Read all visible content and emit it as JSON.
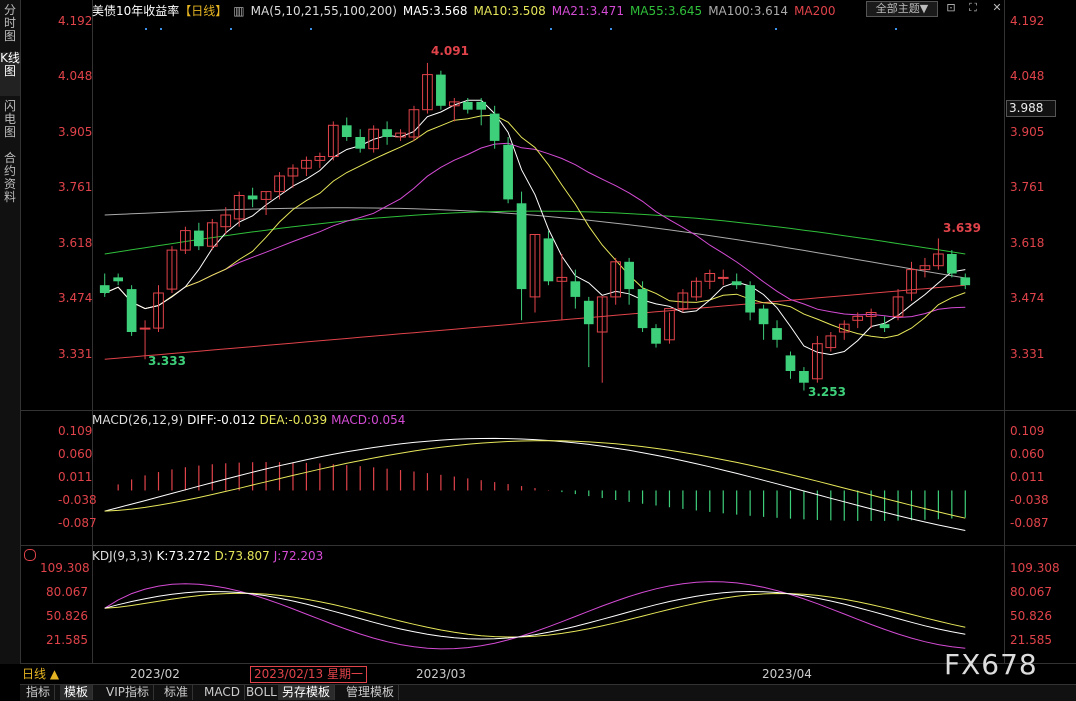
{
  "sidebar": [
    "分时图",
    "K线图",
    "闪电图",
    "合约资料"
  ],
  "header": {
    "title": "美债10年收益率",
    "period_tag": "【日线】",
    "ma_label": "MA(5,10,21,55,100,200)",
    "ma5": "MA5:3.568",
    "ma10": "MA10:3.508",
    "ma21": "MA21:3.471",
    "ma55": "MA55:3.645",
    "ma100": "MA100:3.614",
    "ma200": "MA200",
    "theme_button": "全部主题▼"
  },
  "colors": {
    "up": "#e0434a",
    "down": "#3ecf7a",
    "ma5": "#ffffff",
    "ma10": "#e6e65a",
    "ma21": "#d44bd4",
    "ma55": "#2fbf3a",
    "ma100": "#aaaaaa",
    "ma200": "#e0434a"
  },
  "price_axis": [
    "4.192",
    "4.048",
    "3.905",
    "3.761",
    "3.618",
    "3.474",
    "3.331"
  ],
  "current_price": "3.988",
  "annotations": {
    "high": "4.091",
    "low_left": "3.333",
    "low_right": "3.253",
    "recent_high": "3.639"
  },
  "macd": {
    "label": "MACD(26,12,9)",
    "diff": "DIFF:-0.012",
    "dea": "DEA:-0.039",
    "macd": "MACD:0.054",
    "axis": [
      "0.109",
      "0.060",
      "0.011",
      "-0.038",
      "-0.087"
    ]
  },
  "kdj": {
    "label": "KDJ(9,3,3)",
    "k": "K:73.272",
    "d": "D:73.807",
    "j": "J:72.203",
    "axis": [
      "109.308",
      "80.067",
      "50.826",
      "21.585"
    ]
  },
  "date_axis": [
    "2023/02",
    "2023/03",
    "2023/04"
  ],
  "period_button": "日线 ▲",
  "selected_date": "2023/02/13 星期一",
  "bottom_tabs": [
    "指标",
    "模板",
    "VIP指标",
    "标准",
    "MACD",
    "BOLL",
    "另存模板",
    "管理模板"
  ],
  "watermark": "FX678",
  "chart_data": [
    {
      "type": "candlestick",
      "title": "美债10年收益率【日线】",
      "ylim": [
        3.2,
        4.2
      ],
      "candles": [
        [
          3.52,
          3.55,
          3.49,
          3.5
        ],
        [
          3.54,
          3.55,
          3.52,
          3.53
        ],
        [
          3.51,
          3.52,
          3.39,
          3.4
        ],
        [
          3.41,
          3.43,
          3.33,
          3.41
        ],
        [
          3.41,
          3.52,
          3.4,
          3.5
        ],
        [
          3.51,
          3.62,
          3.5,
          3.61
        ],
        [
          3.61,
          3.67,
          3.6,
          3.66
        ],
        [
          3.66,
          3.68,
          3.61,
          3.62
        ],
        [
          3.62,
          3.69,
          3.61,
          3.68
        ],
        [
          3.67,
          3.72,
          3.65,
          3.7
        ],
        [
          3.69,
          3.76,
          3.67,
          3.75
        ],
        [
          3.75,
          3.77,
          3.72,
          3.74
        ],
        [
          3.74,
          3.76,
          3.7,
          3.76
        ],
        [
          3.76,
          3.81,
          3.74,
          3.8
        ],
        [
          3.8,
          3.83,
          3.77,
          3.82
        ],
        [
          3.82,
          3.85,
          3.8,
          3.84
        ],
        [
          3.84,
          3.86,
          3.82,
          3.85
        ],
        [
          3.85,
          3.94,
          3.84,
          3.93
        ],
        [
          3.93,
          3.95,
          3.89,
          3.9
        ],
        [
          3.9,
          3.92,
          3.86,
          3.87
        ],
        [
          3.87,
          3.93,
          3.86,
          3.92
        ],
        [
          3.92,
          3.94,
          3.88,
          3.9
        ],
        [
          3.9,
          3.92,
          3.89,
          3.91
        ],
        [
          3.9,
          3.98,
          3.89,
          3.97
        ],
        [
          3.97,
          4.09,
          3.96,
          4.06
        ],
        [
          4.06,
          4.07,
          3.97,
          3.98
        ],
        [
          3.98,
          4.0,
          3.94,
          3.99
        ],
        [
          3.99,
          4.0,
          3.96,
          3.97
        ],
        [
          3.99,
          4.0,
          3.93,
          3.97
        ],
        [
          3.96,
          3.98,
          3.87,
          3.89
        ],
        [
          3.88,
          3.9,
          3.73,
          3.74
        ],
        [
          3.73,
          3.76,
          3.43,
          3.51
        ],
        [
          3.49,
          3.65,
          3.45,
          3.65
        ],
        [
          3.64,
          3.66,
          3.52,
          3.53
        ],
        [
          3.53,
          3.6,
          3.43,
          3.54
        ],
        [
          3.53,
          3.56,
          3.46,
          3.49
        ],
        [
          3.48,
          3.49,
          3.31,
          3.42
        ],
        [
          3.4,
          3.49,
          3.27,
          3.49
        ],
        [
          3.49,
          3.59,
          3.47,
          3.58
        ],
        [
          3.58,
          3.59,
          3.47,
          3.51
        ],
        [
          3.51,
          3.53,
          3.4,
          3.41
        ],
        [
          3.41,
          3.42,
          3.36,
          3.37
        ],
        [
          3.38,
          3.45,
          3.37,
          3.46
        ],
        [
          3.46,
          3.51,
          3.45,
          3.5
        ],
        [
          3.49,
          3.54,
          3.48,
          3.53
        ],
        [
          3.53,
          3.56,
          3.51,
          3.55
        ],
        [
          3.54,
          3.56,
          3.52,
          3.54
        ],
        [
          3.53,
          3.55,
          3.51,
          3.52
        ],
        [
          3.52,
          3.53,
          3.43,
          3.45
        ],
        [
          3.46,
          3.47,
          3.38,
          3.42
        ],
        [
          3.41,
          3.43,
          3.36,
          3.38
        ],
        [
          3.34,
          3.35,
          3.28,
          3.3
        ],
        [
          3.3,
          3.31,
          3.25,
          3.27
        ],
        [
          3.28,
          3.39,
          3.27,
          3.37
        ],
        [
          3.36,
          3.4,
          3.35,
          3.39
        ],
        [
          3.4,
          3.43,
          3.38,
          3.42
        ],
        [
          3.43,
          3.45,
          3.41,
          3.44
        ],
        [
          3.44,
          3.46,
          3.41,
          3.45
        ],
        [
          3.42,
          3.44,
          3.4,
          3.41
        ],
        [
          3.44,
          3.51,
          3.43,
          3.49
        ],
        [
          3.5,
          3.58,
          3.48,
          3.56
        ],
        [
          3.56,
          3.59,
          3.54,
          3.57
        ],
        [
          3.57,
          3.64,
          3.56,
          3.6
        ],
        [
          3.6,
          3.61,
          3.54,
          3.55
        ],
        [
          3.54,
          3.55,
          3.51,
          3.52
        ]
      ]
    },
    {
      "type": "bar",
      "title": "MACD(26,12,9)",
      "ylim": [
        -0.11,
        0.13
      ]
    },
    {
      "type": "line",
      "title": "KDJ(9,3,3)",
      "ylim": [
        0,
        120
      ]
    }
  ]
}
